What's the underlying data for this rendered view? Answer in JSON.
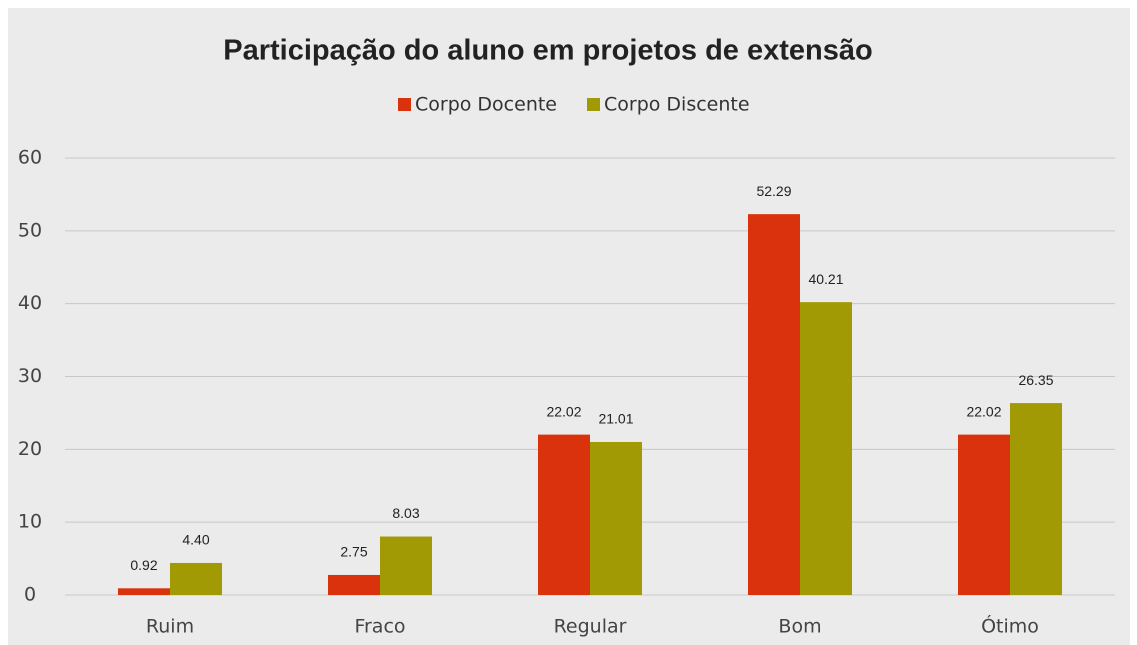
{
  "chart_data": {
    "type": "bar",
    "title": "Participação do aluno em projetos de extensão",
    "categories": [
      "Ruim",
      "Fraco",
      "Regular",
      "Bom",
      "Ótimo"
    ],
    "series": [
      {
        "name": "Corpo Docente",
        "color": "#d9320c",
        "values": [
          0.92,
          2.75,
          22.02,
          52.29,
          22.02
        ],
        "value_labels": [
          "0.92",
          "2.75",
          "22.02",
          "52.29",
          "22.02"
        ]
      },
      {
        "name": "Corpo Discente",
        "color": "#a19a04",
        "values": [
          4.4,
          8.03,
          21.01,
          40.21,
          26.35
        ],
        "value_labels": [
          "4.40",
          "8.03",
          "21.01",
          "40.21",
          "26.35"
        ]
      }
    ],
    "ylim": [
      0,
      60
    ],
    "yticks": [
      0,
      10,
      20,
      30,
      40,
      50,
      60
    ],
    "grid": true,
    "legend": "top"
  }
}
